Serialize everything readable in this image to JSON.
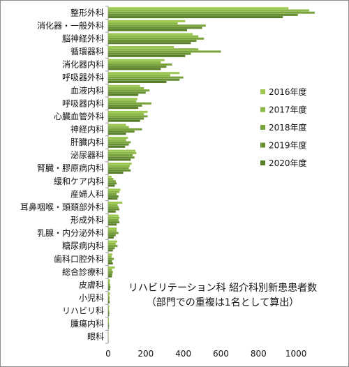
{
  "chart_data": {
    "type": "bar",
    "orientation": "horizontal",
    "title": "リハビリテーション科 紹介科別新患患者数",
    "subtitle": "（部門での重複は1名として算出）",
    "xlim": [
      0,
      1100
    ],
    "xticks": [
      0,
      200,
      400,
      600,
      800,
      1000
    ],
    "grid": false,
    "legend_position": "right",
    "categories": [
      "整形外科",
      "消化器・一般外科",
      "脳神経外科",
      "循環器科",
      "消化器内科",
      "呼吸器外科",
      "血液内科",
      "呼吸器内科",
      "心臓血管外科",
      "神経内科",
      "肝臓内科",
      "泌尿器科",
      "腎臓・膠原病内科",
      "緩和ケア内科",
      "産婦人科",
      "耳鼻咽喉・頭頚部外科",
      "形成外科",
      "乳腺・内分泌外科",
      "糖尿病内科",
      "歯科口腔外科",
      "総合診療科",
      "皮膚科",
      "小児科",
      "リハビリ科",
      "腫瘍内科",
      "眼科"
    ],
    "series": [
      {
        "name": "2016年度",
        "color": "#9bc74f",
        "values": [
          960,
          410,
          450,
          350,
          300,
          380,
          170,
          155,
          210,
          95,
          105,
          145,
          125,
          18,
          65,
          75,
          55,
          45,
          48,
          22,
          35,
          10,
          10,
          6,
          4,
          1
        ]
      },
      {
        "name": "2017年度",
        "color": "#8ab745",
        "values": [
          1070,
          370,
          480,
          480,
          280,
          330,
          190,
          150,
          190,
          110,
          95,
          150,
          115,
          28,
          60,
          50,
          60,
          45,
          40,
          18,
          20,
          8,
          6,
          4,
          3,
          1
        ]
      },
      {
        "name": "2018年度",
        "color": "#78a33b",
        "values": [
          1100,
          520,
          510,
          600,
          340,
          400,
          220,
          230,
          210,
          180,
          120,
          130,
          110,
          40,
          45,
          55,
          55,
          55,
          50,
          30,
          25,
          10,
          8,
          5,
          4,
          1
        ]
      },
      {
        "name": "2019年度",
        "color": "#668f32",
        "values": [
          1010,
          500,
          470,
          440,
          310,
          380,
          200,
          180,
          190,
          140,
          110,
          140,
          120,
          45,
          55,
          60,
          60,
          40,
          35,
          20,
          22,
          12,
          6,
          6,
          5,
          1
        ]
      },
      {
        "name": "2020年度",
        "color": "#577d28",
        "values": [
          930,
          420,
          440,
          410,
          280,
          310,
          160,
          160,
          170,
          95,
          90,
          120,
          80,
          35,
          50,
          40,
          45,
          30,
          25,
          25,
          20,
          10,
          8,
          5,
          3,
          1
        ]
      }
    ]
  }
}
